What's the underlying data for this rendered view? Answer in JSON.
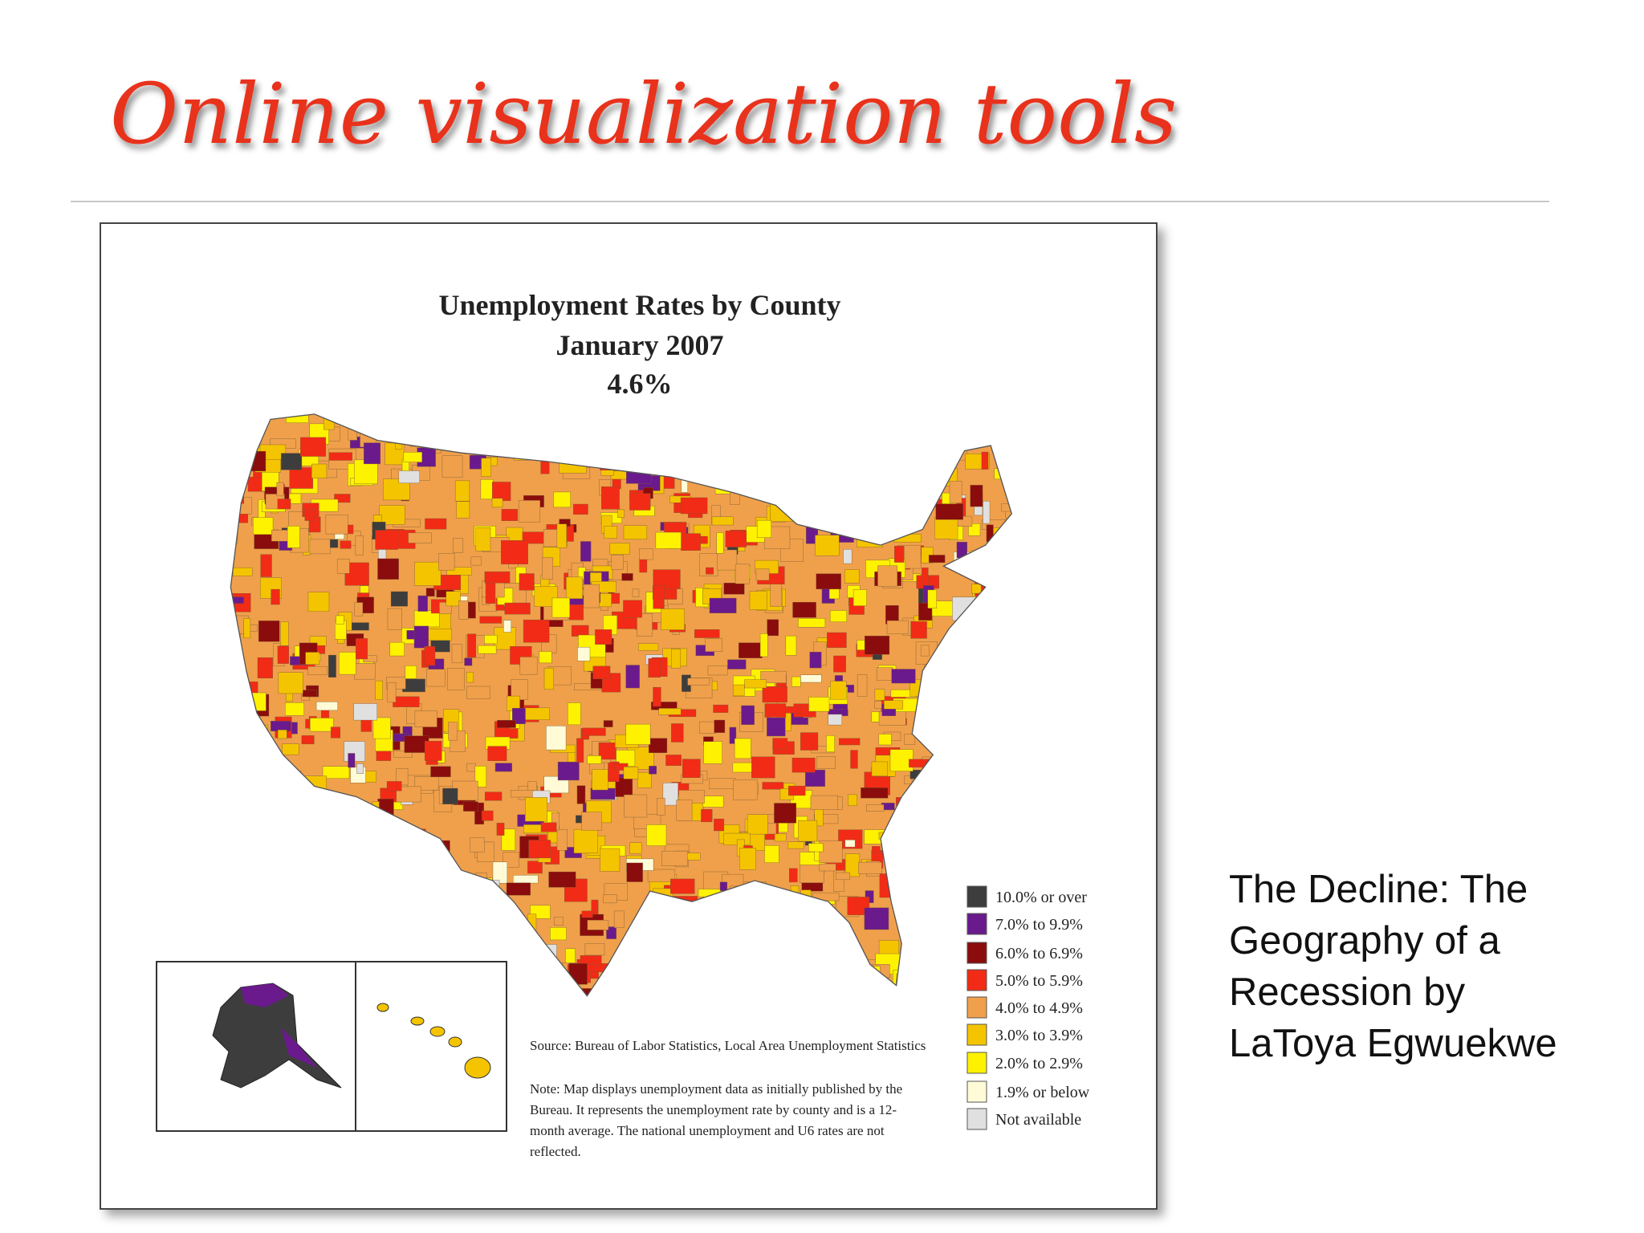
{
  "slide": {
    "title": "Online visualization tools",
    "caption_lines": [
      "The Decline: The",
      "Geography of a",
      "Recession by",
      "LaToya Egwuekwe"
    ]
  },
  "map": {
    "title_lines": [
      "Unemployment Rates by County",
      "January 2007",
      "4.6%"
    ],
    "legend": [
      {
        "label": "10.0% or over",
        "color": "#3d3d3d"
      },
      {
        "label": "7.0% to 9.9%",
        "color": "#6a1a8c"
      },
      {
        "label": "6.0% to 6.9%",
        "color": "#8b0c0c"
      },
      {
        "label": "5.0% to 5.9%",
        "color": "#f22b16"
      },
      {
        "label": "4.0% to 4.9%",
        "color": "#f0a04b"
      },
      {
        "label": "3.0% to 3.9%",
        "color": "#f5c400"
      },
      {
        "label": "2.0% to 2.9%",
        "color": "#fff200"
      },
      {
        "label": "1.9% or below",
        "color": "#fffbd6"
      },
      {
        "label": "Not available",
        "color": "#e0e0e0"
      }
    ],
    "source": "Source: Bureau of Labor Statistics, Local Area Unemployment Statistics",
    "note_lines": [
      "Note: Map displays unemployment data as initially published by the",
      "Bureau. It represents the unemployment rate by county and is a 12-",
      "month average. The national unemployment and U6 rates are not",
      "reflected."
    ]
  }
}
